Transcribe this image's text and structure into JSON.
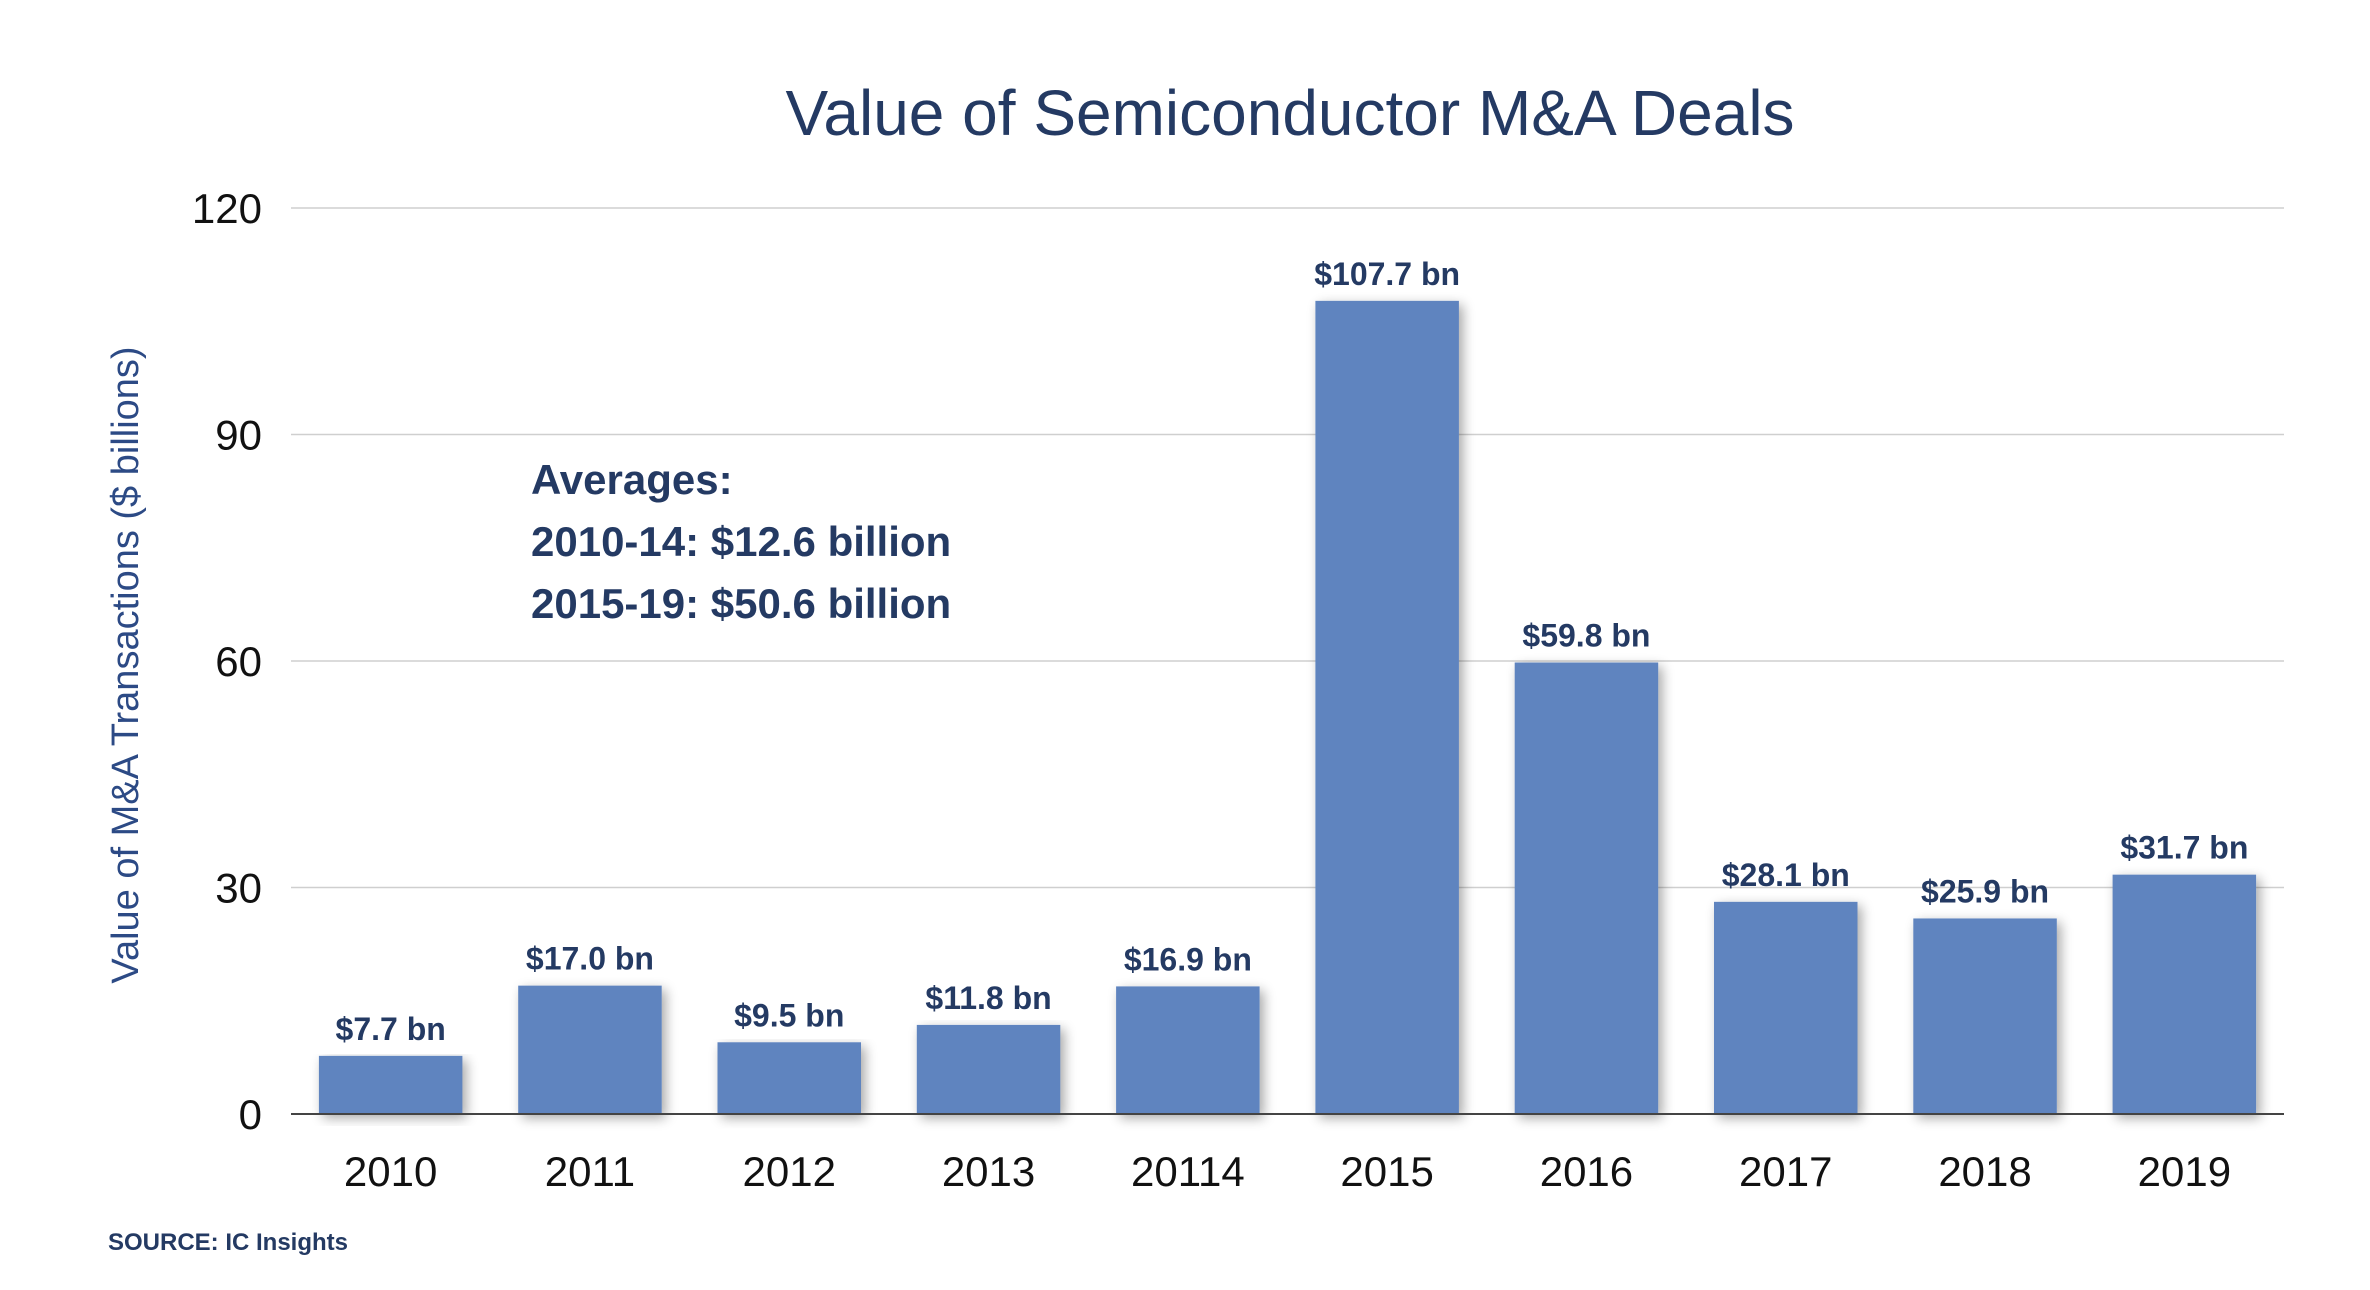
{
  "chart_data": {
    "type": "bar",
    "title": "Value of Semiconductor M&A Deals",
    "xlabel": "",
    "ylabel": "Value of M&A Transactions ($ billions)",
    "ylim": [
      0,
      120
    ],
    "yticks": [
      0,
      30,
      60,
      90,
      120
    ],
    "grid": true,
    "categories": [
      "2010",
      "2011",
      "2012",
      "2013",
      "20114",
      "2015",
      "2016",
      "2017",
      "2018",
      "2019"
    ],
    "values": [
      7.7,
      17.0,
      9.5,
      11.8,
      16.9,
      107.7,
      59.8,
      28.1,
      25.9,
      31.7
    ],
    "data_labels": [
      "$7.7 bn",
      "$17.0 bn",
      "$9.5 bn",
      "$11.8 bn",
      "$16.9 bn",
      "$107.7 bn",
      "$59.8 bn",
      "$28.1 bn",
      "$25.9 bn",
      "$31.7 bn"
    ],
    "bar_color": "#5e84bf",
    "annotations": [
      "Averages:",
      "2010-14: $12.6 billion",
      "2015-19: $50.6 billion"
    ],
    "source": "SOURCE: IC Insights"
  }
}
